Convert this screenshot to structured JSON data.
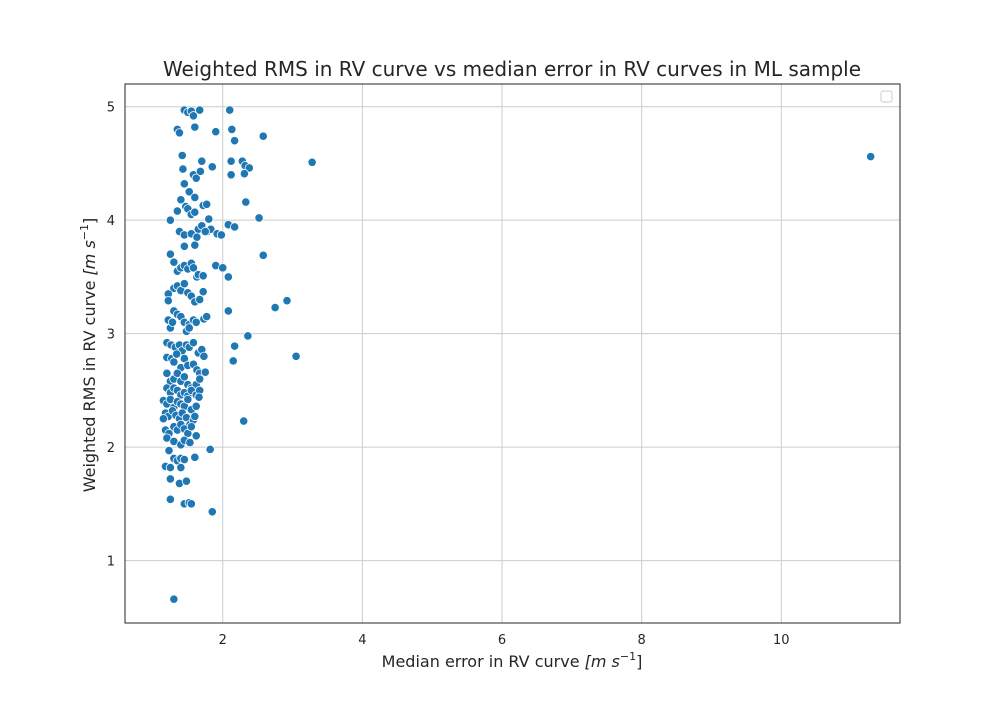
{
  "chart_data": {
    "type": "scatter",
    "title": "Weighted RMS in RV curve vs median error in RV curves in ML sample",
    "xlabel": "Median error in RV curve",
    "xlabel_unit": "[m s",
    "xlabel_exp": "−1",
    "xlabel_close": "]",
    "ylabel": "Weighted RMS in RV curve",
    "ylabel_unit": "[m s",
    "ylabel_exp": "−1",
    "ylabel_close": "]",
    "xlim": [
      0.6,
      11.7
    ],
    "ylim": [
      0.45,
      5.2
    ],
    "xticks": [
      2,
      4,
      6,
      8,
      10
    ],
    "yticks": [
      1,
      2,
      3,
      4,
      5
    ],
    "grid": true,
    "legend": "top-right (empty)",
    "colors": {
      "marker": "#1f77b4",
      "marker_edge": "#ffffff",
      "grid": "#cccccc",
      "spine": "#262626"
    },
    "points": [
      [
        1.45,
        4.97
      ],
      [
        1.5,
        4.95
      ],
      [
        1.55,
        4.96
      ],
      [
        1.58,
        4.92
      ],
      [
        1.67,
        4.97
      ],
      [
        2.1,
        4.97
      ],
      [
        1.35,
        4.8
      ],
      [
        1.38,
        4.77
      ],
      [
        1.6,
        4.82
      ],
      [
        1.9,
        4.78
      ],
      [
        2.13,
        4.8
      ],
      [
        2.17,
        4.7
      ],
      [
        2.58,
        4.74
      ],
      [
        1.42,
        4.57
      ],
      [
        1.7,
        4.52
      ],
      [
        1.85,
        4.47
      ],
      [
        2.12,
        4.52
      ],
      [
        2.28,
        4.52
      ],
      [
        2.32,
        4.48
      ],
      [
        2.38,
        4.46
      ],
      [
        3.28,
        4.51
      ],
      [
        11.28,
        4.56
      ],
      [
        1.43,
        4.45
      ],
      [
        1.58,
        4.4
      ],
      [
        1.62,
        4.37
      ],
      [
        1.68,
        4.43
      ],
      [
        2.12,
        4.4
      ],
      [
        2.31,
        4.41
      ],
      [
        1.45,
        4.32
      ],
      [
        1.52,
        4.25
      ],
      [
        1.4,
        4.18
      ],
      [
        1.6,
        4.2
      ],
      [
        1.72,
        4.13
      ],
      [
        1.77,
        4.14
      ],
      [
        2.33,
        4.16
      ],
      [
        1.35,
        4.08
      ],
      [
        1.47,
        4.12
      ],
      [
        1.5,
        4.1
      ],
      [
        1.55,
        4.05
      ],
      [
        1.6,
        4.07
      ],
      [
        1.8,
        4.01
      ],
      [
        2.52,
        4.02
      ],
      [
        1.25,
        4.0
      ],
      [
        1.65,
        3.92
      ],
      [
        1.7,
        3.95
      ],
      [
        1.78,
        3.9
      ],
      [
        1.83,
        3.92
      ],
      [
        1.92,
        3.88
      ],
      [
        1.98,
        3.87
      ],
      [
        2.08,
        3.96
      ],
      [
        2.17,
        3.94
      ],
      [
        1.38,
        3.9
      ],
      [
        1.45,
        3.87
      ],
      [
        1.55,
        3.88
      ],
      [
        1.63,
        3.85
      ],
      [
        1.75,
        3.9
      ],
      [
        1.25,
        3.7
      ],
      [
        1.3,
        3.63
      ],
      [
        1.45,
        3.77
      ],
      [
        1.6,
        3.78
      ],
      [
        2.58,
        3.69
      ],
      [
        1.35,
        3.55
      ],
      [
        1.4,
        3.58
      ],
      [
        1.45,
        3.6
      ],
      [
        1.5,
        3.57
      ],
      [
        1.55,
        3.62
      ],
      [
        1.58,
        3.58
      ],
      [
        1.63,
        3.5
      ],
      [
        1.65,
        3.52
      ],
      [
        1.72,
        3.51
      ],
      [
        1.9,
        3.6
      ],
      [
        2.0,
        3.58
      ],
      [
        2.08,
        3.5
      ],
      [
        1.3,
        3.4
      ],
      [
        1.35,
        3.42
      ],
      [
        1.4,
        3.38
      ],
      [
        1.45,
        3.44
      ],
      [
        1.5,
        3.36
      ],
      [
        1.55,
        3.33
      ],
      [
        1.6,
        3.28
      ],
      [
        1.67,
        3.3
      ],
      [
        1.72,
        3.37
      ],
      [
        1.22,
        3.35
      ],
      [
        1.22,
        3.29
      ],
      [
        2.08,
        3.2
      ],
      [
        2.75,
        3.23
      ],
      [
        2.92,
        3.29
      ],
      [
        1.3,
        3.2
      ],
      [
        1.35,
        3.17
      ],
      [
        1.4,
        3.15
      ],
      [
        1.45,
        3.1
      ],
      [
        1.52,
        3.08
      ],
      [
        1.58,
        3.12
      ],
      [
        1.62,
        3.1
      ],
      [
        1.73,
        3.13
      ],
      [
        1.77,
        3.15
      ],
      [
        1.22,
        3.12
      ],
      [
        1.25,
        3.05
      ],
      [
        1.28,
        3.1
      ],
      [
        1.48,
        3.02
      ],
      [
        1.52,
        3.05
      ],
      [
        2.36,
        2.98
      ],
      [
        3.05,
        2.8
      ],
      [
        1.2,
        2.92
      ],
      [
        1.26,
        2.9
      ],
      [
        1.32,
        2.88
      ],
      [
        1.38,
        2.9
      ],
      [
        1.42,
        2.85
      ],
      [
        1.48,
        2.9
      ],
      [
        1.52,
        2.88
      ],
      [
        1.58,
        2.92
      ],
      [
        1.65,
        2.83
      ],
      [
        1.7,
        2.86
      ],
      [
        1.73,
        2.8
      ],
      [
        2.17,
        2.89
      ],
      [
        2.15,
        2.76
      ],
      [
        1.2,
        2.79
      ],
      [
        1.27,
        2.78
      ],
      [
        1.3,
        2.75
      ],
      [
        1.34,
        2.82
      ],
      [
        1.4,
        2.7
      ],
      [
        1.45,
        2.78
      ],
      [
        1.5,
        2.72
      ],
      [
        1.58,
        2.73
      ],
      [
        1.63,
        2.68
      ],
      [
        1.67,
        2.65
      ],
      [
        1.75,
        2.66
      ],
      [
        1.2,
        2.65
      ],
      [
        1.25,
        2.58
      ],
      [
        1.3,
        2.6
      ],
      [
        1.35,
        2.65
      ],
      [
        1.4,
        2.58
      ],
      [
        1.45,
        2.62
      ],
      [
        1.5,
        2.55
      ],
      [
        1.55,
        2.52
      ],
      [
        1.62,
        2.55
      ],
      [
        1.67,
        2.6
      ],
      [
        1.2,
        2.52
      ],
      [
        1.25,
        2.48
      ],
      [
        1.3,
        2.52
      ],
      [
        1.35,
        2.5
      ],
      [
        1.4,
        2.46
      ],
      [
        1.45,
        2.48
      ],
      [
        1.5,
        2.45
      ],
      [
        1.55,
        2.5
      ],
      [
        1.62,
        2.46
      ],
      [
        1.67,
        2.5
      ],
      [
        1.15,
        2.41
      ],
      [
        1.2,
        2.38
      ],
      [
        1.25,
        2.42
      ],
      [
        1.3,
        2.35
      ],
      [
        1.35,
        2.4
      ],
      [
        1.4,
        2.38
      ],
      [
        1.45,
        2.36
      ],
      [
        1.5,
        2.42
      ],
      [
        1.55,
        2.33
      ],
      [
        1.62,
        2.36
      ],
      [
        1.66,
        2.44
      ],
      [
        1.18,
        2.3
      ],
      [
        1.22,
        2.27
      ],
      [
        1.28,
        2.32
      ],
      [
        1.33,
        2.28
      ],
      [
        1.38,
        2.25
      ],
      [
        1.42,
        2.3
      ],
      [
        1.48,
        2.26
      ],
      [
        1.53,
        2.2
      ],
      [
        1.58,
        2.24
      ],
      [
        1.6,
        2.27
      ],
      [
        1.15,
        2.25
      ],
      [
        1.18,
        2.15
      ],
      [
        1.23,
        2.12
      ],
      [
        1.3,
        2.18
      ],
      [
        1.35,
        2.15
      ],
      [
        1.4,
        2.2
      ],
      [
        1.45,
        2.16
      ],
      [
        1.5,
        2.12
      ],
      [
        1.55,
        2.18
      ],
      [
        1.62,
        2.1
      ],
      [
        2.3,
        2.23
      ],
      [
        1.2,
        2.08
      ],
      [
        1.3,
        2.05
      ],
      [
        1.4,
        2.02
      ],
      [
        1.45,
        2.06
      ],
      [
        1.53,
        2.04
      ],
      [
        1.82,
        1.98
      ],
      [
        1.23,
        1.97
      ],
      [
        1.3,
        1.9
      ],
      [
        1.35,
        1.88
      ],
      [
        1.4,
        1.9
      ],
      [
        1.45,
        1.89
      ],
      [
        1.6,
        1.91
      ],
      [
        1.18,
        1.83
      ],
      [
        1.25,
        1.82
      ],
      [
        1.4,
        1.82
      ],
      [
        1.25,
        1.72
      ],
      [
        1.38,
        1.68
      ],
      [
        1.48,
        1.7
      ],
      [
        1.25,
        1.54
      ],
      [
        1.45,
        1.5
      ],
      [
        1.52,
        1.51
      ],
      [
        1.55,
        1.5
      ],
      [
        1.85,
        1.43
      ],
      [
        1.3,
        0.66
      ]
    ]
  }
}
